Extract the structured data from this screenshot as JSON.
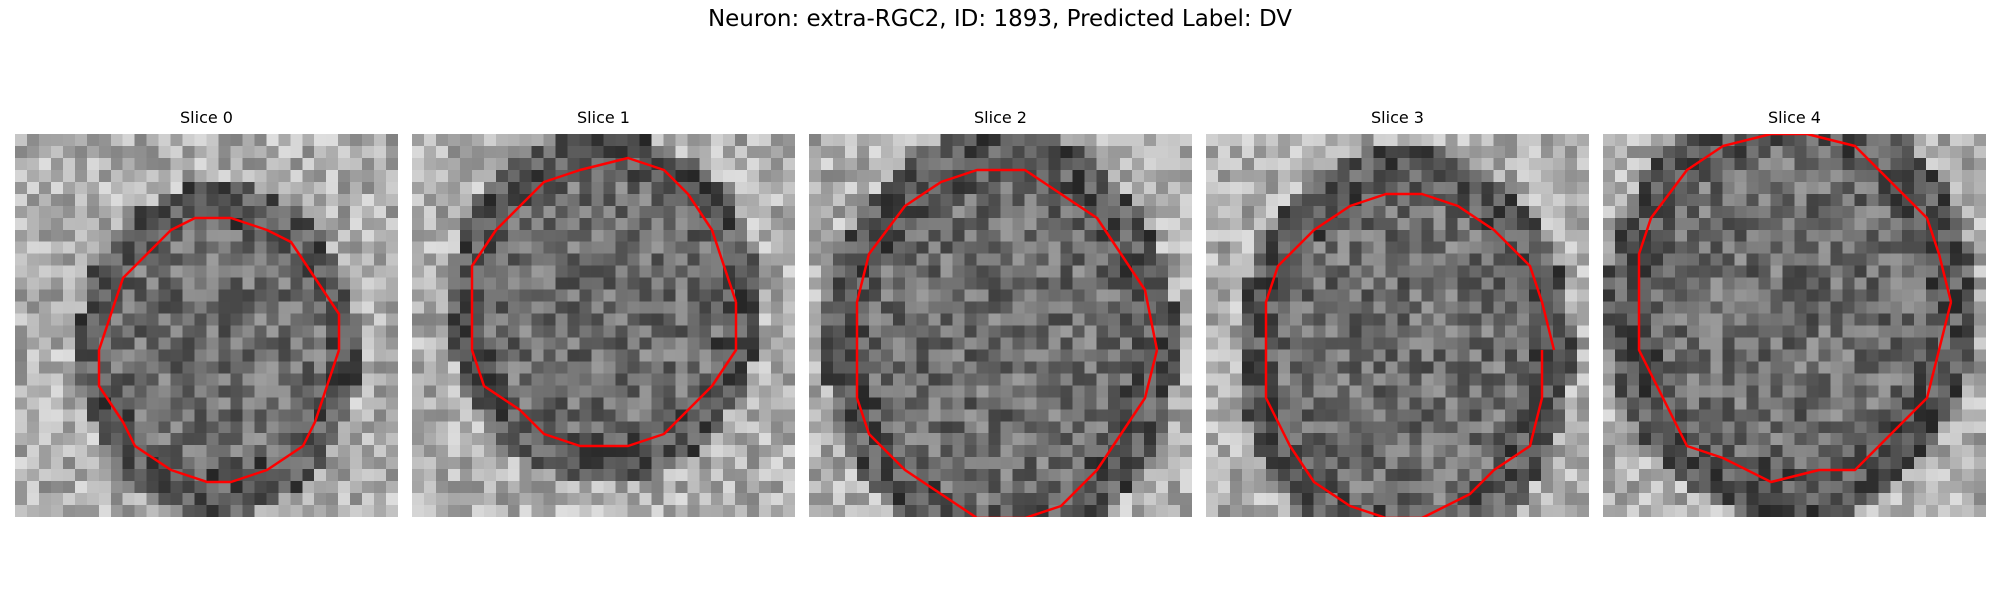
{
  "title": "Neuron: extra-RGC2, ID: 1893, Predicted Label: DV",
  "contour_color": "#ff0000",
  "panels": [
    {
      "title": "Slice 0"
    },
    {
      "title": "Slice 1"
    },
    {
      "title": "Slice 2"
    },
    {
      "title": "Slice 3"
    },
    {
      "title": "Slice 4"
    }
  ]
}
